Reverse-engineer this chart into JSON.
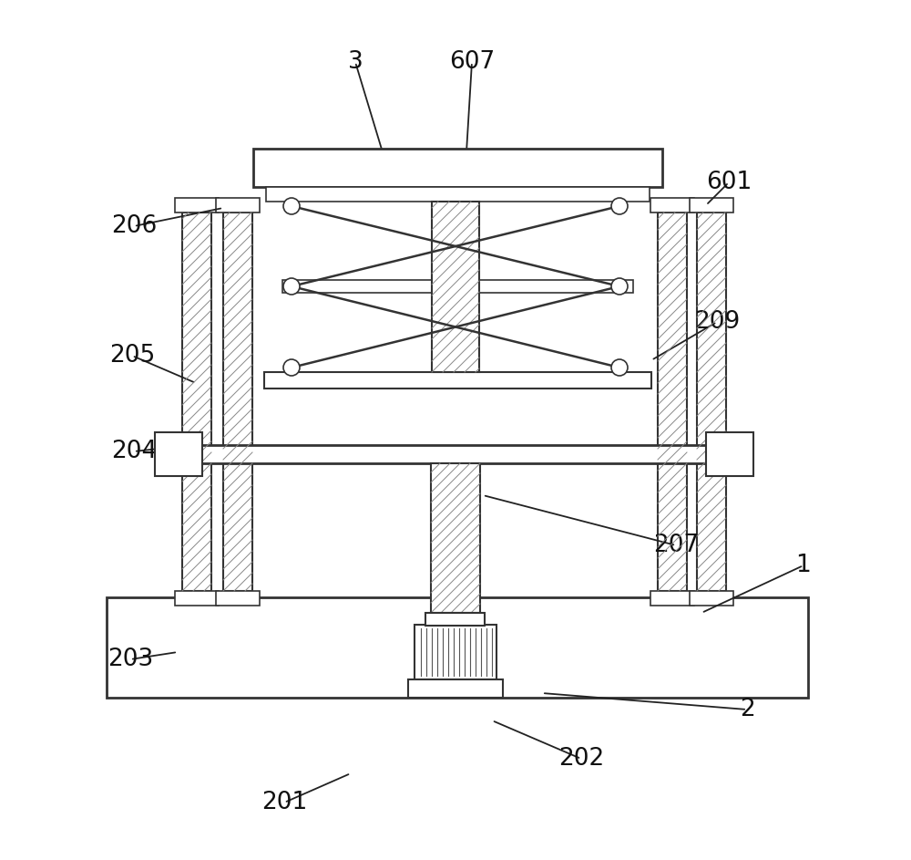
{
  "fig_width": 10.0,
  "fig_height": 9.43,
  "line_color": "#333333",
  "leaders": [
    [
      "3",
      390,
      68,
      430,
      200
    ],
    [
      "607",
      518,
      68,
      510,
      200
    ],
    [
      "601",
      800,
      200,
      775,
      225
    ],
    [
      "206",
      147,
      248,
      245,
      228
    ],
    [
      "205",
      145,
      390,
      215,
      420
    ],
    [
      "204",
      147,
      495,
      192,
      490
    ],
    [
      "209",
      787,
      353,
      715,
      395
    ],
    [
      "207",
      742,
      598,
      530,
      543
    ],
    [
      "203",
      143,
      723,
      195,
      715
    ],
    [
      "1",
      882,
      620,
      770,
      672
    ],
    [
      "2",
      820,
      778,
      595,
      760
    ],
    [
      "201",
      312,
      880,
      385,
      848
    ],
    [
      "202",
      638,
      832,
      540,
      790
    ]
  ]
}
